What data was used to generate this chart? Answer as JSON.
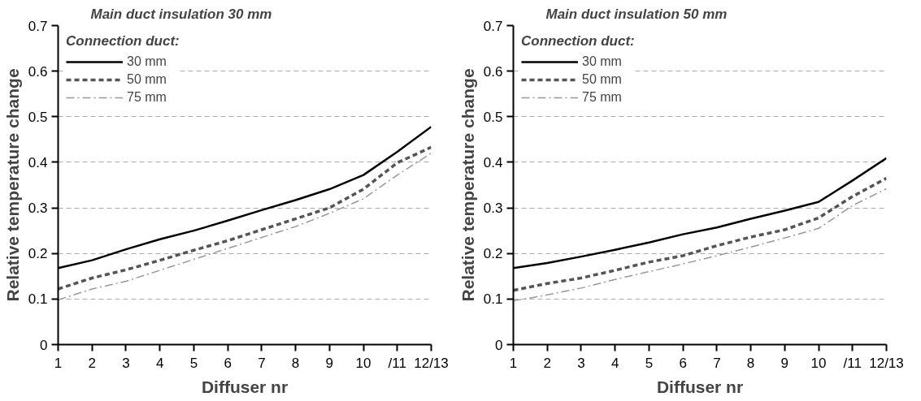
{
  "chart_data": [
    {
      "type": "line",
      "title": "Main duct insulation 30 mm",
      "xlabel": "Diffuser nr",
      "ylabel": "Relative temperature change",
      "legend_title": "Connection duct:",
      "categories": [
        "1",
        "2",
        "3",
        "4",
        "5",
        "6",
        "7",
        "8",
        "9",
        "10",
        "/11",
        "12/13"
      ],
      "ylim": [
        0,
        0.7
      ],
      "yticks": [
        0,
        0.1,
        0.2,
        0.3,
        0.4,
        0.5,
        0.6,
        0.7
      ],
      "grid": "y",
      "legend": "top left",
      "marker": "none",
      "series": [
        {
          "name": "30 mm",
          "color": "#000000",
          "line_style": "solid",
          "values": [
            0.168,
            0.185,
            0.209,
            0.231,
            0.25,
            0.272,
            0.295,
            0.317,
            0.341,
            0.372,
            0.423,
            0.478
          ]
        },
        {
          "name": "50 mm",
          "color": "#555555",
          "line_style": "dashed",
          "values": [
            0.122,
            0.146,
            0.164,
            0.185,
            0.207,
            0.228,
            0.252,
            0.276,
            0.3,
            0.341,
            0.399,
            0.433
          ]
        },
        {
          "name": "75 mm",
          "color": "#999999",
          "line_style": "dashdot",
          "values": [
            0.098,
            0.122,
            0.139,
            0.163,
            0.187,
            0.211,
            0.235,
            0.259,
            0.288,
            0.32,
            0.372,
            0.42
          ]
        }
      ]
    },
    {
      "type": "line",
      "title": "Main duct insulation 50 mm",
      "xlabel": "Diffuser nr",
      "ylabel": "Relative temperature change",
      "legend_title": "Connection duct:",
      "categories": [
        "1",
        "2",
        "3",
        "4",
        "5",
        "6",
        "7",
        "8",
        "9",
        "10",
        "/11",
        "12/13"
      ],
      "ylim": [
        0,
        0.7
      ],
      "yticks": [
        0,
        0.1,
        0.2,
        0.3,
        0.4,
        0.5,
        0.6,
        0.7
      ],
      "grid": "y",
      "legend": "top left",
      "marker": "none",
      "series": [
        {
          "name": "30 mm",
          "color": "#000000",
          "line_style": "solid",
          "values": [
            0.168,
            0.179,
            0.193,
            0.208,
            0.224,
            0.242,
            0.257,
            0.276,
            0.294,
            0.313,
            0.36,
            0.409
          ]
        },
        {
          "name": "50 mm",
          "color": "#555555",
          "line_style": "dashed",
          "values": [
            0.119,
            0.134,
            0.146,
            0.163,
            0.181,
            0.195,
            0.217,
            0.236,
            0.252,
            0.278,
            0.325,
            0.365
          ]
        },
        {
          "name": "75 mm",
          "color": "#999999",
          "line_style": "dashdot",
          "values": [
            0.096,
            0.109,
            0.124,
            0.143,
            0.16,
            0.177,
            0.195,
            0.214,
            0.234,
            0.255,
            0.305,
            0.342
          ]
        }
      ]
    }
  ]
}
